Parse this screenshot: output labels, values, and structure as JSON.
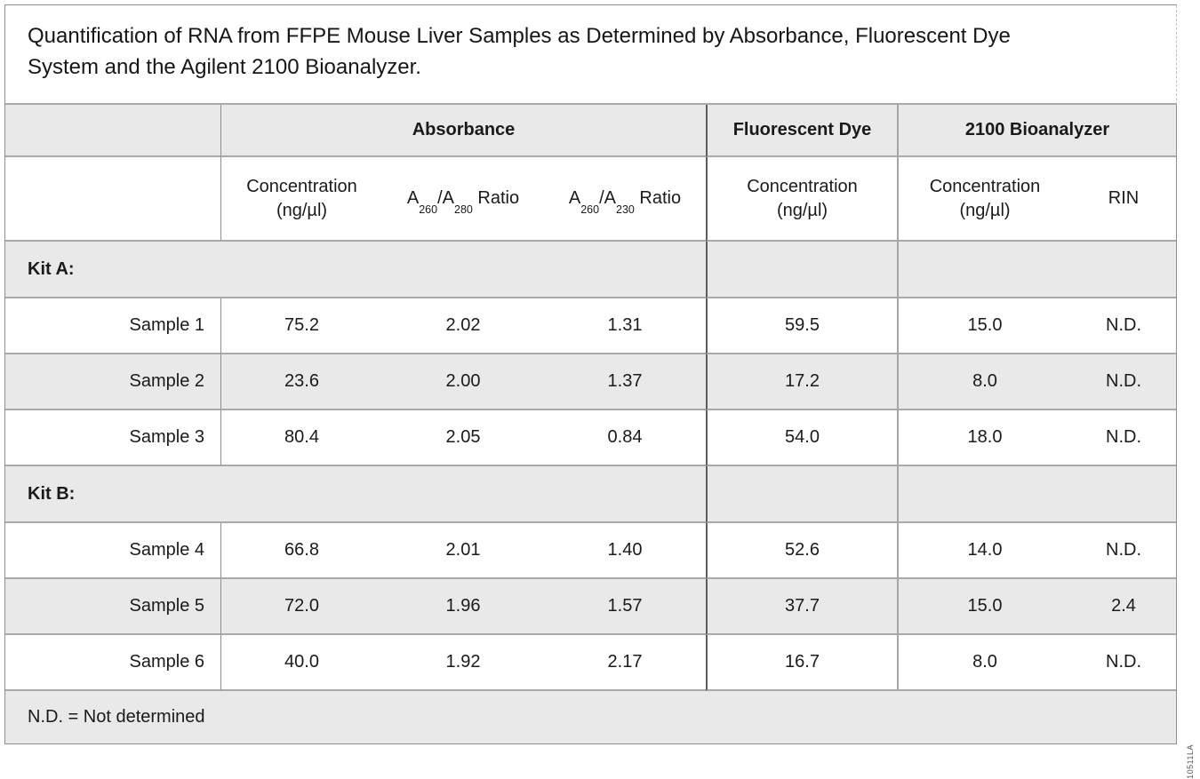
{
  "title": {
    "line1": "Quantification of RNA from FFPE Mouse Liver Samples as Determined by Absorbance, Fluorescent Dye",
    "line2": "System and the Agilent 2100 Bioanalyzer."
  },
  "art_code": "10511LA",
  "colors": {
    "row_shade": "#e9e9e9",
    "row_border": "#a9a9a9",
    "divider_dark": "#5c5c5c",
    "divider_mid": "#8f8f8f",
    "divider_light": "#a6a6a6",
    "text": "#1a1a1a"
  },
  "header": {
    "groups": {
      "absorbance": "Absorbance",
      "fluorescent_dye": "Fluorescent Dye",
      "bioanalyzer": "2100 Bioanalyzer"
    },
    "sub": {
      "conc_line1": "Concentration",
      "conc_line2": "(ng/µl)",
      "ratio280": {
        "b1": "A",
        "s1": "260",
        "b2": "/A",
        "s2": "280",
        "suffix": " Ratio"
      },
      "ratio230": {
        "b1": "A",
        "s1": "260",
        "b2": "/A",
        "s2": "230",
        "suffix": " Ratio"
      },
      "rin": "RIN"
    }
  },
  "rows": [
    {
      "type": "section",
      "label": "Kit A:"
    },
    {
      "type": "sample",
      "label": "Sample 1",
      "abs_conc": "75.2",
      "ratio280": "2.02",
      "ratio230": "1.31",
      "dye_conc": "59.5",
      "bio_conc": "15.0",
      "rin": "N.D."
    },
    {
      "type": "sample",
      "label": "Sample 2",
      "abs_conc": "23.6",
      "ratio280": "2.00",
      "ratio230": "1.37",
      "dye_conc": "17.2",
      "bio_conc": "8.0",
      "rin": "N.D."
    },
    {
      "type": "sample",
      "label": "Sample 3",
      "abs_conc": "80.4",
      "ratio280": "2.05",
      "ratio230": "0.84",
      "dye_conc": "54.0",
      "bio_conc": "18.0",
      "rin": "N.D."
    },
    {
      "type": "section",
      "label": "Kit B:"
    },
    {
      "type": "sample",
      "label": "Sample 4",
      "abs_conc": "66.8",
      "ratio280": "2.01",
      "ratio230": "1.40",
      "dye_conc": "52.6",
      "bio_conc": "14.0",
      "rin": "N.D."
    },
    {
      "type": "sample",
      "label": "Sample 5",
      "abs_conc": "72.0",
      "ratio280": "1.96",
      "ratio230": "1.57",
      "dye_conc": "37.7",
      "bio_conc": "15.0",
      "rin": "2.4"
    },
    {
      "type": "sample",
      "label": "Sample 6",
      "abs_conc": "40.0",
      "ratio280": "1.92",
      "ratio230": "2.17",
      "dye_conc": "16.7",
      "bio_conc": "8.0",
      "rin": "N.D."
    }
  ],
  "footnote": "N.D. = Not determined"
}
